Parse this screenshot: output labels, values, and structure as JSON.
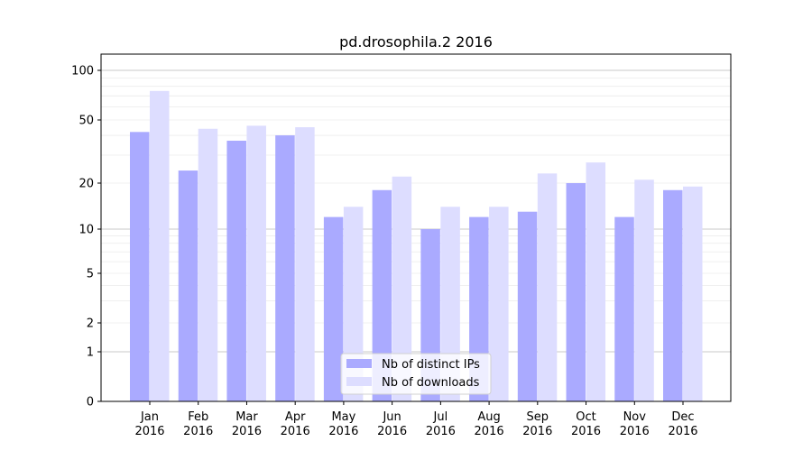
{
  "chart_data": {
    "type": "bar",
    "title": "pd.drosophila.2 2016",
    "xlabel": "",
    "ylabel": "",
    "yscale": "symlog",
    "ylim": [
      0,
      120
    ],
    "yticks": [
      0,
      1,
      2,
      5,
      10,
      20,
      50,
      100
    ],
    "ytick_labels": [
      "0",
      "1",
      "2",
      "5",
      "10",
      "20",
      "50",
      "100"
    ],
    "categories": [
      "Jan\n2016",
      "Feb\n2016",
      "Mar\n2016",
      "Apr\n2016",
      "May\n2016",
      "Jun\n2016",
      "Jul\n2016",
      "Aug\n2016",
      "Sep\n2016",
      "Oct\n2016",
      "Nov\n2016",
      "Dec\n2016"
    ],
    "series": [
      {
        "name": "Nb of distinct IPs",
        "color": "#aaaaff",
        "values": [
          42,
          24,
          37,
          40,
          12,
          18,
          10,
          12,
          13,
          20,
          12,
          18
        ]
      },
      {
        "name": "Nb of downloads",
        "color": "#ddddff",
        "values": [
          75,
          44,
          46,
          45,
          14,
          22,
          14,
          14,
          23,
          27,
          21,
          19
        ]
      }
    ],
    "grid": true,
    "legend": "lower-center"
  }
}
